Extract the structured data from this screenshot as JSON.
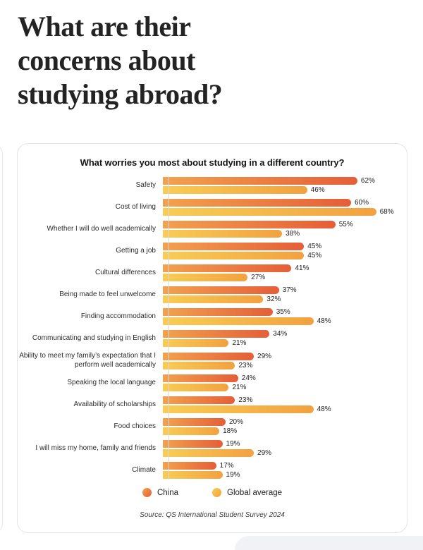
{
  "page": {
    "title": "What are their concerns about studying abroad?",
    "title_lines": [
      "What are their",
      "concerns about",
      "studying abroad?"
    ]
  },
  "chart_card": {
    "title": "What worries you most about studying in a different country?",
    "source": "Source: QS International Student Survey 2024"
  },
  "chart_data": {
    "type": "bar",
    "orientation": "horizontal",
    "title": "What worries you most about studying in a different country?",
    "categories": [
      "Safety",
      "Cost of living",
      "Whether I will do well academically",
      "Getting a job",
      "Cultural differences",
      "Being made to feel unwelcome",
      "Finding accommodation",
      "Communicating and studying in English",
      "Ability to meet my family’s expectation that I perform well academically",
      "Speaking the local language",
      "Availability of scholarships",
      "Food choices",
      "I will miss my home, family and friends",
      "Climate"
    ],
    "series": [
      {
        "name": "China",
        "values": [
          62,
          60,
          55,
          45,
          41,
          37,
          35,
          34,
          29,
          24,
          23,
          20,
          19,
          17
        ],
        "color_start": "#F2A24E",
        "color_end": "#E55E38"
      },
      {
        "name": "Global average",
        "values": [
          46,
          68,
          38,
          45,
          27,
          32,
          48,
          21,
          23,
          21,
          48,
          18,
          29,
          19
        ],
        "color_start": "#F8CD55",
        "color_end": "#F2A140"
      }
    ],
    "value_suffix": "%",
    "xlim": [
      0,
      68
    ],
    "grid": false,
    "legend_position": "bottom",
    "source": "Source: QS International Student Survey 2024"
  },
  "colors": {
    "page_background": "#ffffff",
    "card_border": "#e4e4e7",
    "axis_line": "#d8d8da",
    "text_dark": "#232323",
    "next_section_background": "#f1f2f5"
  }
}
